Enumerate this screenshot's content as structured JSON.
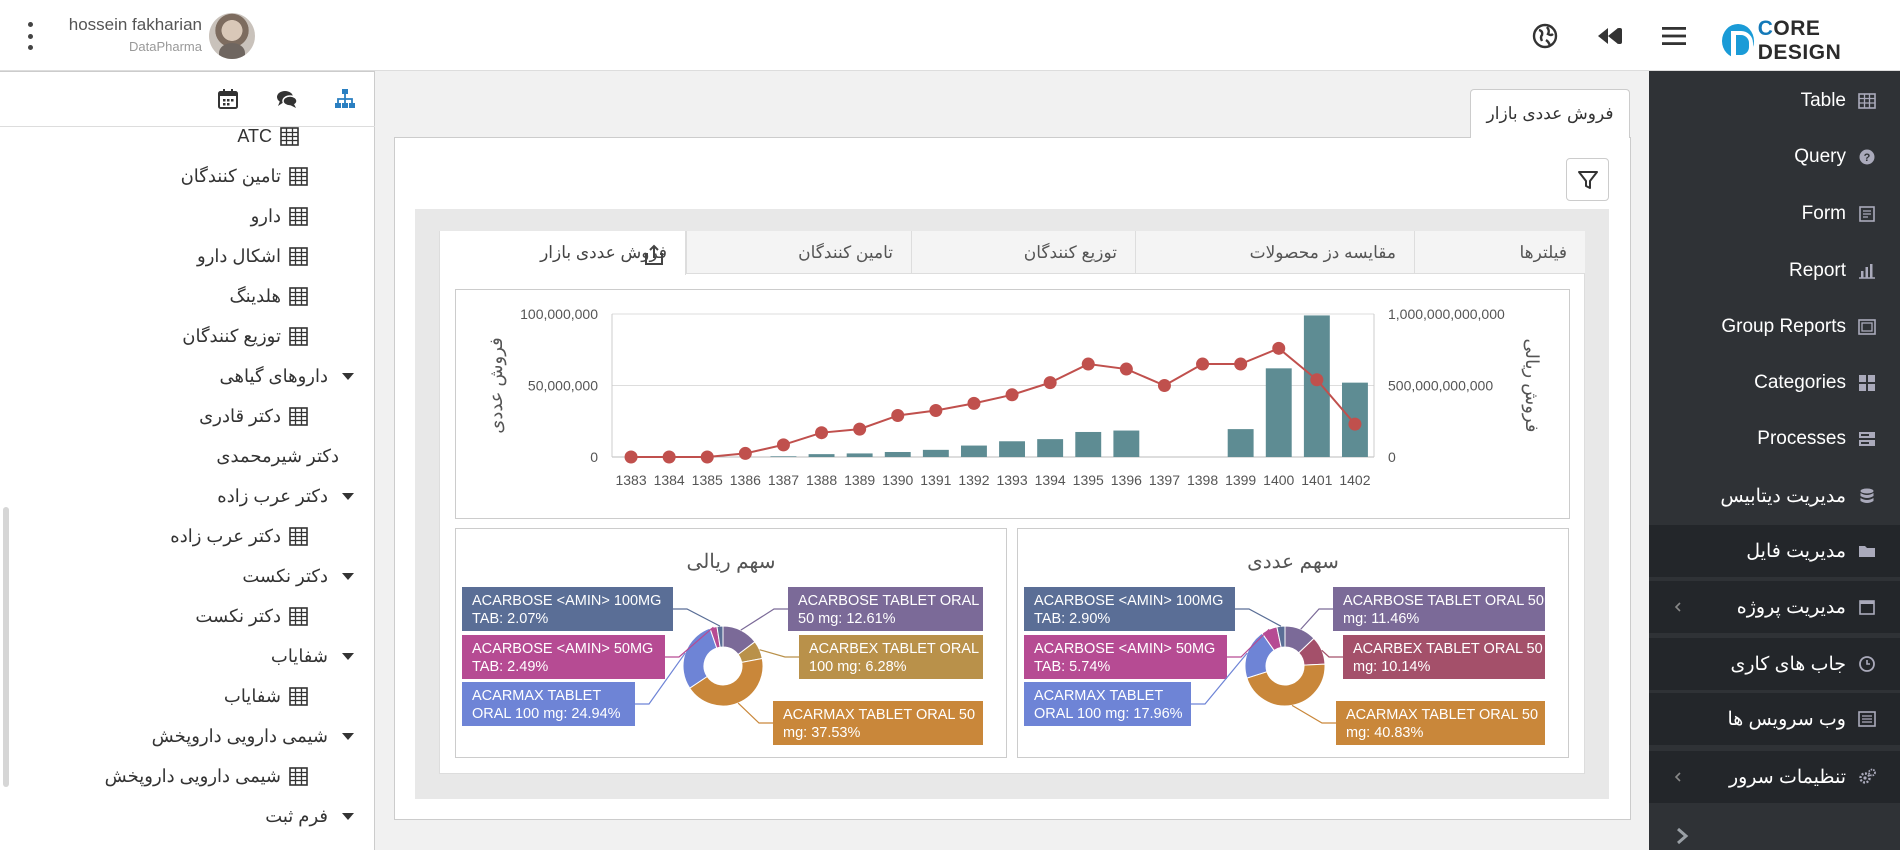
{
  "header": {
    "user_name": "hossein fakharian",
    "user_org": "DataPharma",
    "brand_part1": "C",
    "brand_part2": "ORE DESIGN"
  },
  "left_panel": {
    "tree": [
      {
        "label": "ATC",
        "icon": "grid-icon",
        "caret": false
      },
      {
        "label": "تامین کنندگان",
        "icon": "grid-icon",
        "caret": false
      },
      {
        "label": "دارو",
        "icon": "grid-icon",
        "caret": false
      },
      {
        "label": "اشکال دارو",
        "icon": "grid-icon",
        "caret": false
      },
      {
        "label": "هلدینگ",
        "icon": "grid-icon",
        "caret": false
      },
      {
        "label": "توزیع کنندگان",
        "icon": "grid-icon",
        "caret": false
      },
      {
        "label": "داروهای گیاهی",
        "icon": "",
        "caret": true
      },
      {
        "label": "دکتر قادری",
        "icon": "grid-icon",
        "caret": false
      },
      {
        "label": "دکتر شیرمحمدی",
        "icon": "",
        "caret": false
      },
      {
        "label": "دکتر عرب زاده",
        "icon": "",
        "caret": true
      },
      {
        "label": "دکتر عرب زاده",
        "icon": "grid-icon",
        "caret": false
      },
      {
        "label": "دکتر نکست",
        "icon": "",
        "caret": true
      },
      {
        "label": "دکتر نکست",
        "icon": "grid-icon",
        "caret": false
      },
      {
        "label": "شفایاب",
        "icon": "",
        "caret": true
      },
      {
        "label": "شفایاب",
        "icon": "grid-icon",
        "caret": false
      },
      {
        "label": "شیمی دارویی داروپخش",
        "icon": "",
        "caret": true
      },
      {
        "label": "شیمی دارویی داروپخش",
        "icon": "grid-icon",
        "caret": false
      },
      {
        "label": "فرم ثبت",
        "icon": "",
        "caret": true
      }
    ]
  },
  "sidebar": {
    "items": [
      {
        "label": "Table",
        "icon": "table-icon"
      },
      {
        "label": "Query",
        "icon": "question-icon"
      },
      {
        "label": "Form",
        "icon": "form-icon"
      },
      {
        "label": "Report",
        "icon": "bar-chart-icon"
      },
      {
        "label": "Group Reports",
        "icon": "image-frame-icon"
      },
      {
        "label": "Categories",
        "icon": "tiles-icon"
      },
      {
        "label": "Processes",
        "icon": "server-icon"
      },
      {
        "label": "مدیریت دیتابیس",
        "icon": "database-icon"
      },
      {
        "label": "مدیریت فایل",
        "icon": "folder-icon"
      },
      {
        "label": "مدیریت پروژه",
        "icon": "calendar-icon"
      },
      {
        "label": "جاب های کاری",
        "icon": "clock-icon"
      },
      {
        "label": "وب سرویس ها",
        "icon": "list-icon"
      },
      {
        "label": "تنظیمات سرور",
        "icon": "gears-icon"
      }
    ]
  },
  "main": {
    "page_tab": "فروش عددی بازار",
    "tabs": [
      "فیلترها",
      "مقایسه دز محصولات",
      "توزیع کنندگان",
      "تامین کنندگان",
      "فروش عددی بازار"
    ]
  },
  "colors": {
    "bar": "#5e8c93",
    "line": "#c0504d",
    "sidebar_bg": "#2f3236"
  },
  "chart_data": [
    {
      "type": "bar+line",
      "categories": [
        "1383",
        "1384",
        "1385",
        "1386",
        "1387",
        "1388",
        "1389",
        "1390",
        "1391",
        "1392",
        "1393",
        "1394",
        "1395",
        "1396",
        "1397",
        "1398",
        "1399",
        "1400",
        "1401",
        "1402"
      ],
      "series": [
        {
          "name": "فروش عددی",
          "type": "bar",
          "axis": "left",
          "values": [
            0,
            0,
            0,
            0,
            500000,
            2000000,
            2500000,
            3500000,
            5000000,
            8000000,
            11000000,
            12500000,
            17500000,
            18500000,
            0,
            0,
            19500000,
            62000000,
            99000000,
            52000000
          ]
        },
        {
          "name": "فروش ریالی",
          "type": "line",
          "axis": "right",
          "values": [
            0,
            0,
            0,
            25000000,
            85000000,
            170000000,
            195000000,
            290000000,
            325000000,
            375000000,
            435000000,
            520000000,
            650000000,
            615000000,
            500000000,
            650000000,
            650000000,
            760000000,
            540000000,
            230000000
          ]
        }
      ],
      "ylabel_left": "فروش عددی",
      "ylabel_right": "فروش ریالی",
      "yticks_left": [
        "0",
        "50,000,000",
        "100,000,000"
      ],
      "yticks_right": [
        "0",
        "500,000,000,000",
        "1,000,000,000,000"
      ],
      "ylim_left": [
        0,
        100000000
      ],
      "ylim_right": [
        0,
        1000000000
      ],
      "ylim_right_note": "right-axis tick labels printed as shown"
    },
    {
      "type": "pie",
      "title": "سهم ریالی",
      "slices": [
        {
          "label_l1": "ACARBOSE <AMIN> 100MG",
          "label_l2": "TAB: 2.07%",
          "value": 2.07,
          "color": "#5a6e96",
          "side": "left"
        },
        {
          "label_l1": "ACARBOSE <AMIN> 50MG",
          "label_l2": "TAB: 2.49%",
          "value": 2.49,
          "color": "#b64b93",
          "side": "left"
        },
        {
          "label_l1": "ACARMAX   TABLET",
          "label_l2": "ORAL 100 mg: 24.94%",
          "value": 24.94,
          "color": "#6e84d6",
          "side": "left"
        },
        {
          "label_l1": "ACARBOSE   TABLET ORAL",
          "label_l2": "50 mg: 12.61%",
          "value": 12.61,
          "color": "#7b6a98",
          "side": "right"
        },
        {
          "label_l1": "ACARBEX   TABLET ORAL",
          "label_l2": "100 mg: 6.28%",
          "value": 6.28,
          "color": "#b9914a",
          "side": "right"
        },
        {
          "label_l1": "ACARMAX   TABLET ORAL 50",
          "label_l2": "mg: 37.53%",
          "value": 37.53,
          "color": "#c9873a",
          "side": "right"
        }
      ]
    },
    {
      "type": "pie",
      "title": "سهم عددی",
      "slices": [
        {
          "label_l1": "ACARBOSE <AMIN> 100MG",
          "label_l2": "TAB: 2.90%",
          "value": 2.9,
          "color": "#5a6e96",
          "side": "left"
        },
        {
          "label_l1": "ACARBOSE <AMIN> 50MG",
          "label_l2": "TAB: 5.74%",
          "value": 5.74,
          "color": "#b64b93",
          "side": "left"
        },
        {
          "label_l1": "ACARMAX   TABLET",
          "label_l2": "ORAL 100 mg: 17.96%",
          "value": 17.96,
          "color": "#6e84d6",
          "side": "left"
        },
        {
          "label_l1": "ACARBOSE   TABLET ORAL 50",
          "label_l2": "mg: 11.46%",
          "value": 11.46,
          "color": "#7b6a98",
          "side": "right"
        },
        {
          "label_l1": "ACARBEX   TABLET ORAL 50",
          "label_l2": "mg: 10.14%",
          "value": 10.14,
          "color": "#a4506a",
          "side": "right"
        },
        {
          "label_l1": "ACARMAX   TABLET ORAL 50",
          "label_l2": "mg: 40.83%",
          "value": 40.83,
          "color": "#c9873a",
          "side": "right"
        }
      ]
    }
  ]
}
